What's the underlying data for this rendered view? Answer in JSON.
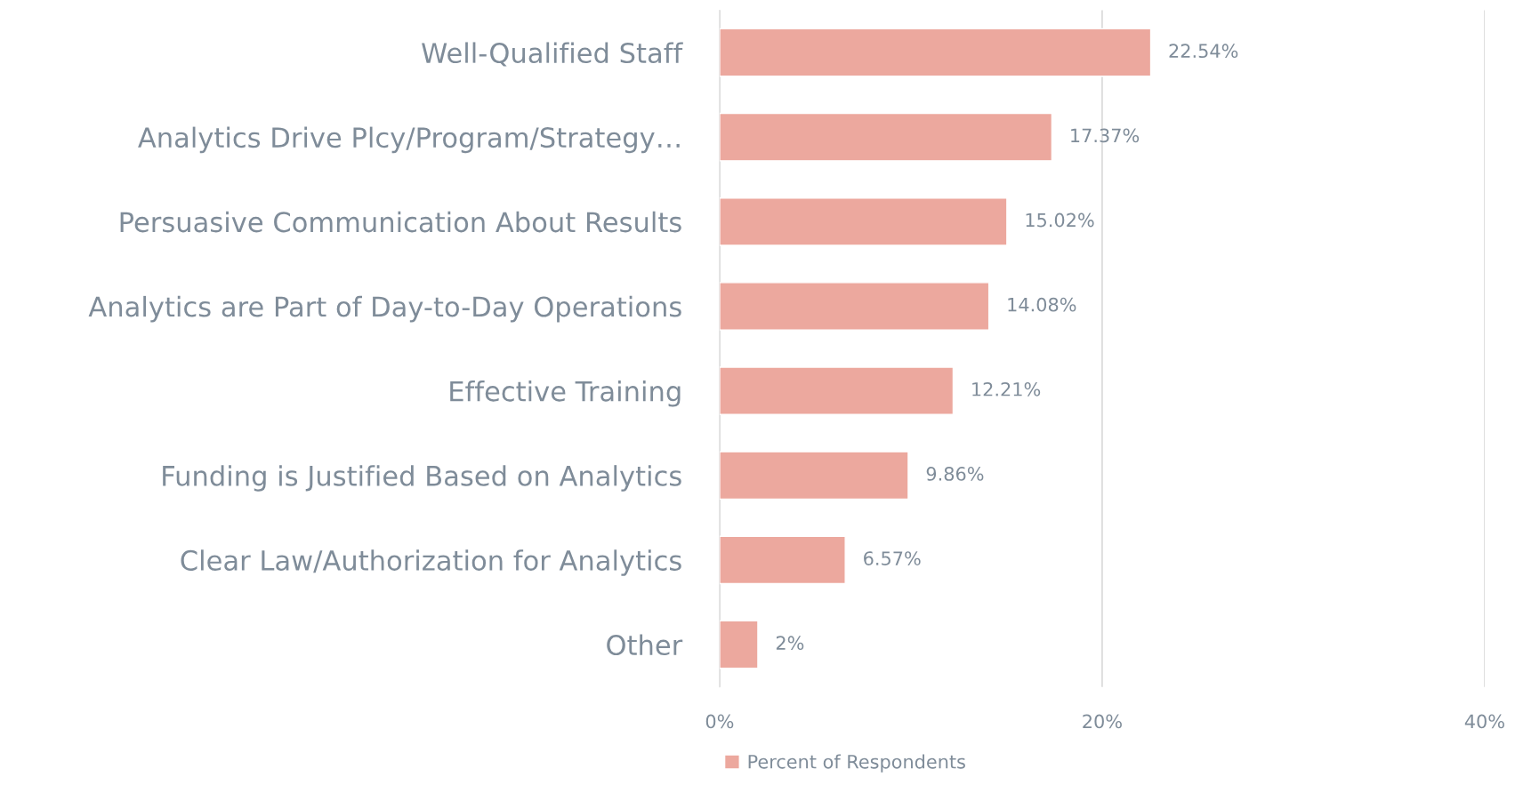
{
  "chart_data": {
    "type": "bar",
    "orientation": "horizontal",
    "categories": [
      "Well-Qualified Staff",
      "Analytics Drive Plcy/Program/Strategy…",
      "Persuasive Communication About Results",
      "Analytics are Part of Day-to-Day Operations",
      "Effective Training",
      "Funding is Justified Based on Analytics",
      "Clear Law/Authorization for Analytics",
      "Other"
    ],
    "series": [
      {
        "name": "Percent of Respondents",
        "color": "#eca89e",
        "values": [
          22.54,
          17.37,
          15.02,
          14.08,
          12.21,
          9.86,
          6.57,
          2
        ],
        "value_labels": [
          "22.54%",
          "17.37%",
          "15.02%",
          "14.08%",
          "12.21%",
          "9.86%",
          "6.57%",
          "2%"
        ]
      }
    ],
    "xlim": [
      0,
      40
    ],
    "xticks": [
      {
        "value": 0,
        "label": "0%"
      },
      {
        "value": 20,
        "label": "20%"
      },
      {
        "value": 40,
        "label": "40%"
      }
    ],
    "grid": "x",
    "legend": "bottom"
  }
}
